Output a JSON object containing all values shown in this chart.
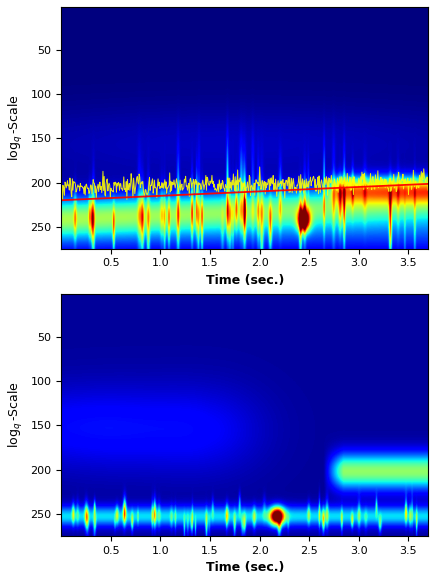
{
  "fig_width": 4.35,
  "fig_height": 5.81,
  "dpi": 100,
  "xticks": [
    0.5,
    1.0,
    1.5,
    2.0,
    2.5,
    3.0,
    3.5
  ],
  "yticks_top": [
    50,
    100,
    150,
    200,
    250
  ],
  "yticks_bot": [
    50,
    100,
    150,
    200,
    250
  ],
  "xlabel": "Time (sec.)",
  "ylabel_top": "$\\log_q$-Scale",
  "ylabel_bot": "$\\log_q$-Scale",
  "time_max": 3.7,
  "scale_max": 275,
  "nx": 500,
  "ny": 275
}
